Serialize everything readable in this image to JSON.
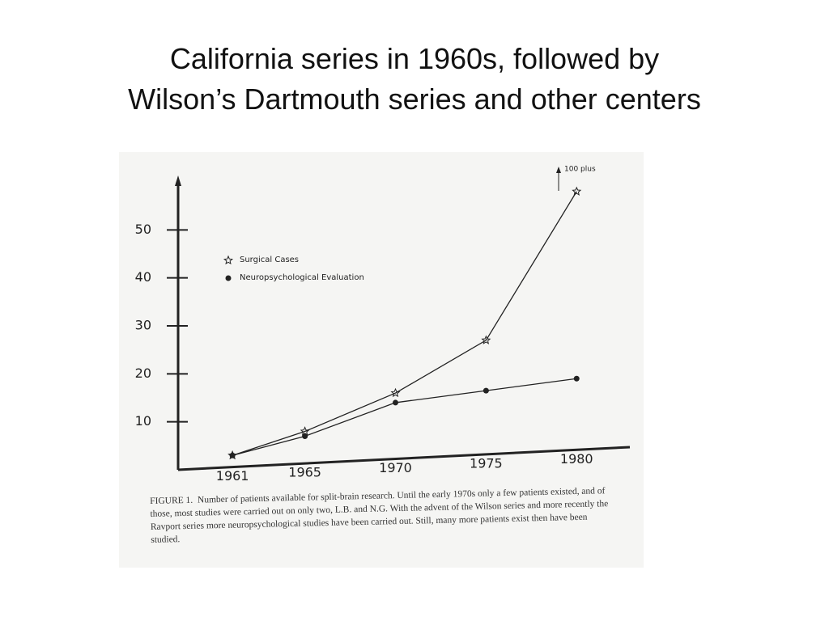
{
  "chart_data": {
    "type": "line",
    "title": [
      "California series in 1960s, followed by",
      "Wilson’s Dartmouth series and other centers"
    ],
    "x": [
      1961,
      1965,
      1970,
      1975,
      1980
    ],
    "xlim": [
      1958,
      1982
    ],
    "xticks": [
      1961,
      1965,
      1970,
      1975,
      1980
    ],
    "ylim": [
      0,
      60
    ],
    "yticks": [
      10,
      20,
      30,
      40,
      50
    ],
    "series": [
      {
        "name": "Surgical Cases",
        "marker": "star",
        "color": "#222222",
        "values": [
          3,
          8,
          16,
          27,
          58
        ]
      },
      {
        "name": "Neuropsychological Evaluation",
        "marker": "dot",
        "color": "#222222",
        "values": [
          3,
          7,
          14,
          16.5,
          19
        ]
      }
    ],
    "annotation": "100 plus",
    "caption": {
      "label": "FIGURE 1.",
      "text": "Number of patients available for split-brain research. Until the early 1970s only a few patients existed, and of those, most studies were carried out on only two, L.B. and N.G. With the advent of the Wilson series and more recently the Ravport series more neuropsychological studies have been carried out. Still, many more patients exist then have been studied."
    }
  }
}
